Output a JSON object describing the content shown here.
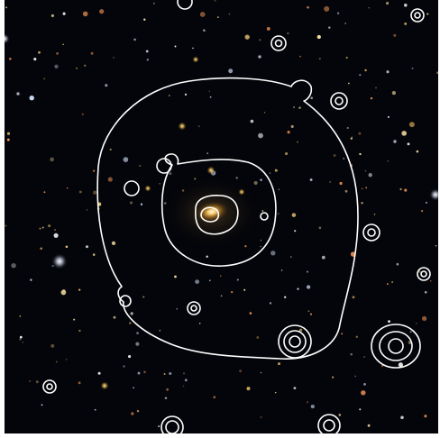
{
  "image": {
    "kind": "optical-sky-image-with-x-ray-contours",
    "background": "#04050a",
    "frame_color": "#ffffff",
    "contour_color": "#ffffff",
    "central_galaxy_color": "#ffd070",
    "star_colors": [
      "#ffd27a",
      "#ffe7a8",
      "#d8e6ff",
      "#ffffff",
      "#ff9c5a",
      "#f0c060"
    ]
  }
}
